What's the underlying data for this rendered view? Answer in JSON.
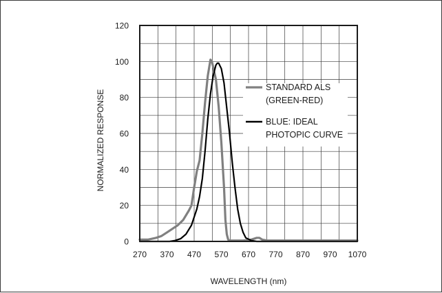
{
  "chart_data": {
    "type": "line",
    "title": "",
    "xlabel": "WAVELENGTH (nm)",
    "ylabel": "NORMALIZED RESPONSE",
    "xlim": [
      270,
      1070
    ],
    "ylim": [
      0,
      120
    ],
    "xticks": [
      270,
      370,
      470,
      570,
      670,
      770,
      870,
      970,
      1070
    ],
    "yticks": [
      0,
      20,
      40,
      60,
      80,
      100,
      120
    ],
    "grid": true,
    "legend_position": "right",
    "series": [
      {
        "name": "STANDARD ALS (GREEN-RED)",
        "color": "#808080",
        "legend_lines": [
          "STANDARD ALS",
          "(GREEN-RED)"
        ],
        "x": [
          270,
          300,
          330,
          350,
          370,
          390,
          410,
          430,
          450,
          460,
          470,
          480,
          490,
          500,
          510,
          520,
          530,
          535,
          540,
          550,
          560,
          570,
          580,
          585,
          590,
          595,
          600,
          620,
          650,
          680,
          700,
          710,
          720,
          740,
          800,
          900,
          1000,
          1070
        ],
        "y": [
          1,
          1,
          2,
          3,
          5,
          7,
          9,
          12,
          17,
          20,
          30,
          39,
          45,
          60,
          77,
          92,
          101,
          100,
          97,
          90,
          75,
          55,
          30,
          12,
          4,
          1,
          0.5,
          0.5,
          0.5,
          1,
          2,
          2,
          1,
          0.5,
          0.5,
          0.5,
          0.5,
          0.5
        ]
      },
      {
        "name": "BLUE: IDEAL PHOTOPIC CURVE",
        "color": "#000000",
        "legend_lines": [
          "BLUE: IDEAL",
          "PHOTOPIC CURVE"
        ],
        "x": [
          270,
          380,
          400,
          420,
          440,
          460,
          480,
          490,
          500,
          510,
          520,
          530,
          540,
          550,
          555,
          560,
          570,
          580,
          590,
          600,
          610,
          620,
          630,
          640,
          650,
          660,
          680,
          700,
          1070
        ],
        "y": [
          0,
          0,
          0.5,
          1.5,
          4,
          9,
          18,
          25,
          35,
          50,
          68,
          82,
          92,
          98,
          99,
          99,
          96,
          88,
          74,
          60,
          44,
          30,
          18,
          10,
          5,
          2,
          0.5,
          0,
          0
        ]
      }
    ]
  }
}
